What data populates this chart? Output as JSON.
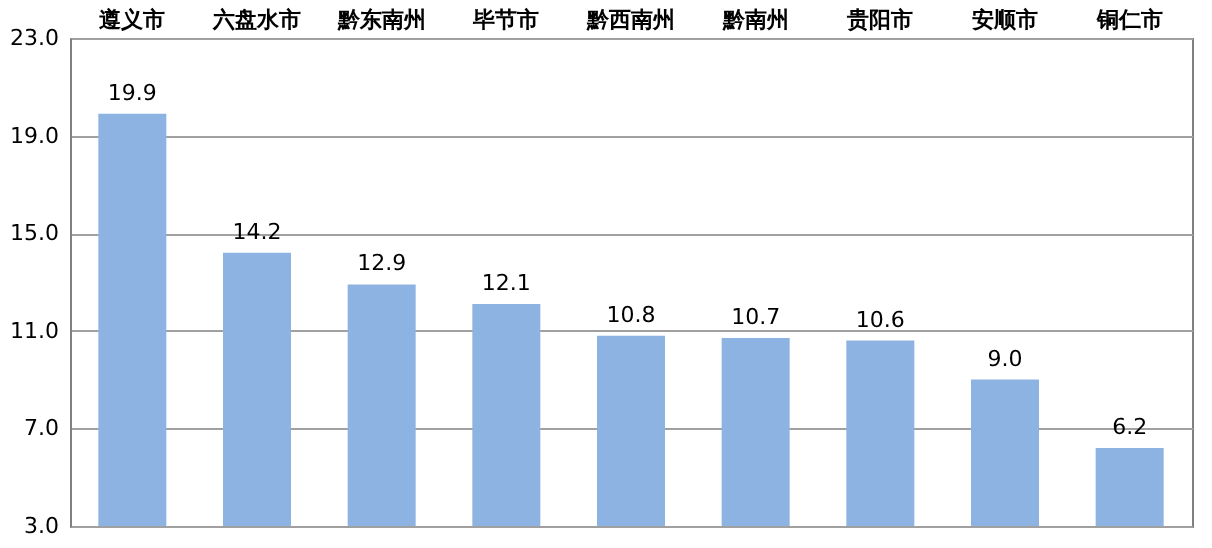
{
  "chart_data": {
    "type": "bar",
    "categories": [
      "遵义市",
      "六盘水市",
      "黔东南州",
      "毕节市",
      "黔西南州",
      "黔南州",
      "贵阳市",
      "安顺市",
      "铜仁市"
    ],
    "values": [
      19.9,
      14.2,
      12.9,
      12.1,
      10.8,
      10.7,
      10.6,
      9.0,
      6.2
    ],
    "color": "#8db3e2",
    "ylim": [
      3.0,
      23.0
    ],
    "yticks": [
      {
        "value": 3,
        "label": "3.0"
      },
      {
        "value": 7,
        "label": "7.0"
      },
      {
        "value": 11,
        "label": "11.0"
      },
      {
        "value": 15,
        "label": "15.0"
      },
      {
        "value": 19,
        "label": "19.0"
      },
      {
        "value": 23,
        "label": "23.0"
      }
    ],
    "value_labels": [
      "19.9",
      "14.2",
      "12.9",
      "12.1",
      "10.8",
      "10.7",
      "10.6",
      "9.0",
      "6.2"
    ],
    "grid": "y"
  }
}
